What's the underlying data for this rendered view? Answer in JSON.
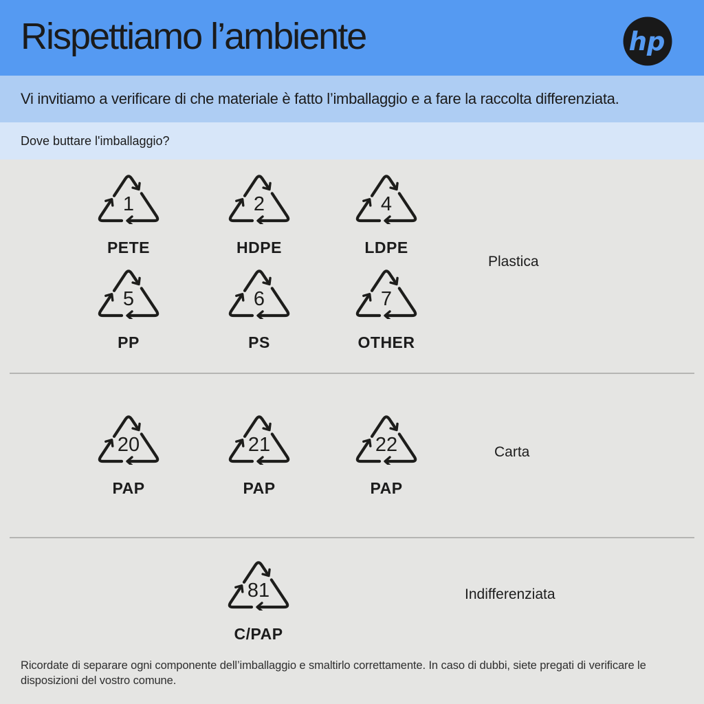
{
  "header": {
    "title": "Rispettiamo l’ambiente",
    "logo_text": "hp"
  },
  "subheader": {
    "text": "Vi invitiamo a verificare di che materiale è fatto l’imballaggio e a fare la raccolta differenziata."
  },
  "question": {
    "text": "Dove buttare l'imballaggio?"
  },
  "categories": [
    {
      "label": "Plastica"
    },
    {
      "label": "Carta"
    },
    {
      "label": "Indifferenziata"
    }
  ],
  "symbols": [
    {
      "number": "1",
      "code": "PETE",
      "category": "Plastica"
    },
    {
      "number": "2",
      "code": "HDPE",
      "category": "Plastica"
    },
    {
      "number": "4",
      "code": "LDPE",
      "category": "Plastica"
    },
    {
      "number": "5",
      "code": "PP",
      "category": "Plastica"
    },
    {
      "number": "6",
      "code": "PS",
      "category": "Plastica"
    },
    {
      "number": "7",
      "code": "OTHER",
      "category": "Plastica"
    },
    {
      "number": "20",
      "code": "PAP",
      "category": "Carta"
    },
    {
      "number": "21",
      "code": "PAP",
      "category": "Carta"
    },
    {
      "number": "22",
      "code": "PAP",
      "category": "Carta"
    },
    {
      "number": "81",
      "code": "C/PAP",
      "category": "Indifferenziata"
    }
  ],
  "footer": {
    "lines": [
      "Ricordate di separare ogni componente dell’imballaggio e smaltirlo correttamente. In caso di dubbi, siete pregati di verificare le",
      "disposizioni del vostro comune."
    ]
  },
  "colors": {
    "header_bg": "#559af2",
    "subheader_bg": "#aecdf3",
    "question_bg": "#d7e6f9",
    "body_bg": "#e5e5e3",
    "symbol_stroke": "#1d1d1b",
    "divider": "#b5b5b3",
    "text_dark": "#1c1c1c",
    "logo_circle": "#191919"
  }
}
